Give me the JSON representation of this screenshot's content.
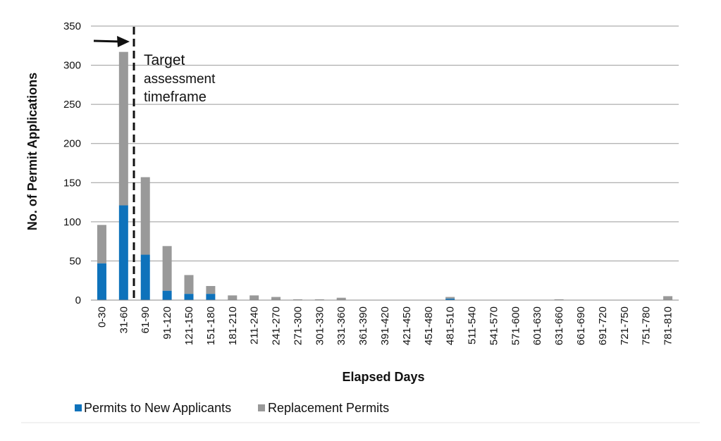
{
  "chart_data": {
    "type": "bar",
    "stacked": true,
    "xlabel": "Elapsed Days",
    "ylabel": "No. of Permit Applications",
    "ylim": [
      0,
      350
    ],
    "yticks": [
      0,
      50,
      100,
      150,
      200,
      250,
      300,
      350
    ],
    "grid": true,
    "legend_position": "bottom-left",
    "categories": [
      "0-30",
      "31-60",
      "61-90",
      "91-120",
      "121-150",
      "151-180",
      "181-210",
      "211-240",
      "241-270",
      "271-300",
      "301-330",
      "331-360",
      "361-390",
      "391-420",
      "421-450",
      "451-480",
      "481-510",
      "511-540",
      "541-570",
      "571-600",
      "601-630",
      "631-660",
      "661-690",
      "691-720",
      "721-750",
      "751-780",
      "781-810"
    ],
    "series": [
      {
        "name": "Permits to New Applicants",
        "color": "#0e72bb",
        "values": [
          47,
          121,
          58,
          12,
          8,
          8,
          0,
          0,
          0,
          0,
          0,
          0,
          0,
          0,
          0,
          0,
          2,
          0,
          0,
          0,
          0,
          0,
          0,
          0,
          0,
          0,
          0
        ]
      },
      {
        "name": "Replacement Permits",
        "color": "#999999",
        "values": [
          49,
          196,
          99,
          57,
          24,
          10,
          6,
          6,
          4,
          1,
          1,
          3,
          0,
          0,
          0,
          0,
          2,
          0,
          0,
          0,
          0,
          1,
          0,
          0,
          0,
          0,
          5
        ]
      }
    ],
    "annotation": {
      "lines": [
        "Target",
        "assessment",
        "timeframe"
      ],
      "marker_after_category": "31-60",
      "arrow": "right"
    }
  }
}
